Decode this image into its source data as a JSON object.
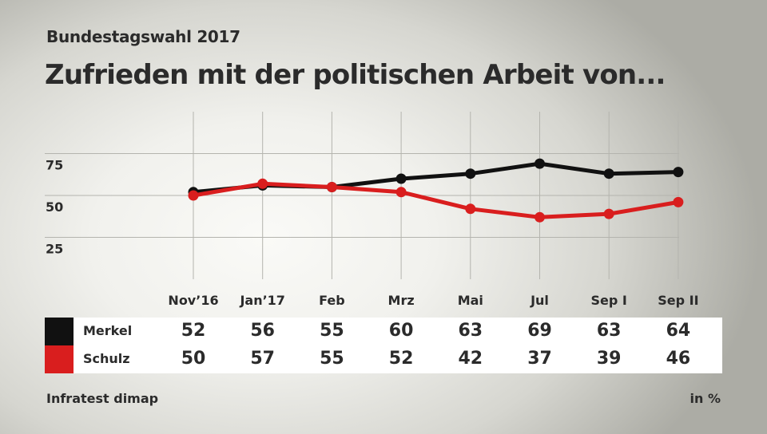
{
  "header": {
    "subtitle": "Bundestagswahl 2017",
    "title": "Zufrieden mit der politischen Arbeit von..."
  },
  "footer": {
    "source": "Infratest dimap",
    "unit": "in %"
  },
  "colors": {
    "merkel": "#111111",
    "schulz": "#d91e1e",
    "grid": "#b4b4ae"
  },
  "chart_data": {
    "type": "line",
    "title": "Zufrieden mit der politischen Arbeit von...",
    "subtitle": "Bundestagswahl 2017",
    "xlabel": "",
    "ylabel": "in %",
    "categories": [
      "Nov’16",
      "Jan’17",
      "Feb",
      "Mrz",
      "Mai",
      "Jul",
      "Sep I",
      "Sep II"
    ],
    "yticks": [
      25,
      50,
      75
    ],
    "ylim": [
      0,
      100
    ],
    "grid": true,
    "series": [
      {
        "name": "Merkel",
        "color": "#111111",
        "values": [
          52,
          56,
          55,
          60,
          63,
          69,
          63,
          64
        ]
      },
      {
        "name": "Schulz",
        "color": "#d91e1e",
        "values": [
          50,
          57,
          55,
          52,
          42,
          37,
          39,
          46
        ]
      }
    ],
    "legend": "bottom-table",
    "source": "Infratest dimap"
  }
}
